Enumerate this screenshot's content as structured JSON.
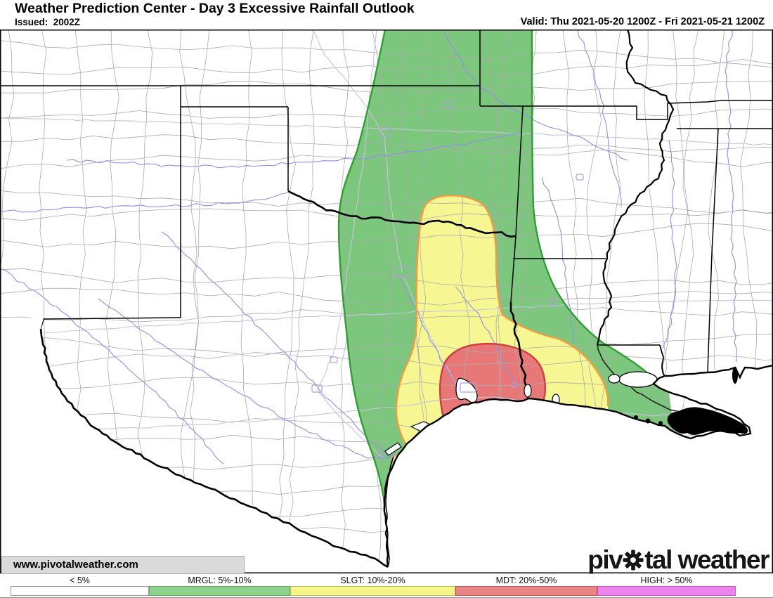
{
  "header": {
    "title": "Weather Prediction Center - Day 3 Excessive Rainfall Outlook",
    "issued": "Issued:  2002Z",
    "valid": "Valid: Thu 2021-05-20 1200Z - Fri 2021-05-21 1200Z"
  },
  "map": {
    "watermark": "www.pivotalweather.com",
    "logo": {
      "prefix": "piv",
      "suffix": "tal weather",
      "gear_icon": "gear"
    },
    "risk_areas": [
      {
        "code": "MRGL",
        "name": "Marginal risk 5%-10%",
        "fill": "#7dc67e",
        "stroke": "#2f9e33"
      },
      {
        "code": "SLGT",
        "name": "Slight risk 10%-20%",
        "fill": "#f6f693",
        "stroke": "#f29d3f"
      },
      {
        "code": "MDT",
        "name": "Moderate risk 20%-50%",
        "fill": "#e87878",
        "stroke": "#d13c3c"
      }
    ],
    "basemap_colors": {
      "county_line": "#ababab",
      "state_line": "#000000",
      "river": "#8f8fe8",
      "road": "#c6c6da",
      "city": "#b49ae0",
      "water": "#ffffff"
    }
  },
  "legend": {
    "items": [
      {
        "label": "< 5%",
        "fill": "#ffffff",
        "border": "#999999"
      },
      {
        "label": "MRGL: 5%-10%",
        "fill": "#8ed28e",
        "border": "#63a863"
      },
      {
        "label": "SLGT: 10%-20%",
        "fill": "#f4f48b",
        "border": "#bdbd62"
      },
      {
        "label": "MDT: 20%-50%",
        "fill": "#e98585",
        "border": "#bf5858"
      },
      {
        "label": "HIGH: > 50%",
        "fill": "#ee82ee",
        "border": "#bb5fbb"
      }
    ]
  }
}
